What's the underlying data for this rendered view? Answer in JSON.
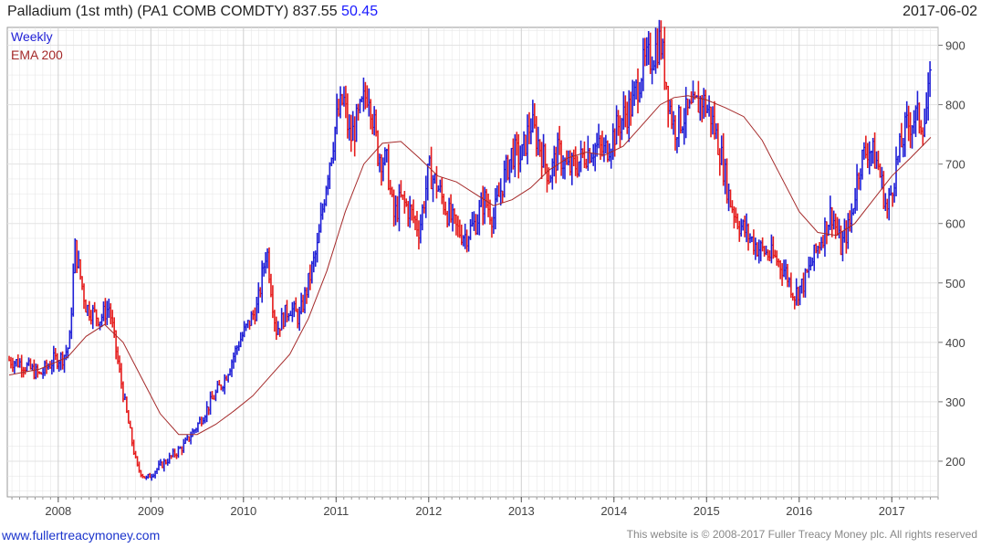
{
  "header": {
    "symbol": "Palladium (1st mth)  (PA1 COMB COMDTY)",
    "price": "837.55",
    "change": "50.45",
    "date": "2017-06-02"
  },
  "footer": {
    "link": "www.fullertreacymoney.com",
    "copyright": "This website is © 2008-2017 Fuller Treacy Money plc. All rights reserved"
  },
  "colors": {
    "up": "#1f1fd6",
    "down": "#e51c1c",
    "ema": "#a52a2a",
    "grid": "#e3e3e3",
    "weekly_label": "#1f1fd6",
    "ema_label": "#a52a2a"
  },
  "chart_data": {
    "type": "line",
    "legend": [
      "Weekly",
      "EMA 200"
    ],
    "legend_position": "top-left",
    "x_ticks": [
      "2008",
      "2009",
      "2010",
      "2011",
      "2012",
      "2013",
      "2014",
      "2015",
      "2016",
      "2017"
    ],
    "y_ticks": [
      200,
      300,
      400,
      500,
      600,
      700,
      800,
      900
    ],
    "ylim": [
      140,
      930
    ],
    "grid": true,
    "series": [
      {
        "name": "Weekly",
        "x": [
          2007.47,
          2007.6,
          2007.8,
          2007.95,
          2008.05,
          2008.12,
          2008.18,
          2008.3,
          2008.45,
          2008.55,
          2008.65,
          2008.75,
          2008.85,
          2008.95,
          2009.05,
          2009.2,
          2009.35,
          2009.5,
          2009.65,
          2009.8,
          2009.95,
          2010.05,
          2010.15,
          2010.25,
          2010.35,
          2010.5,
          2010.6,
          2010.7,
          2010.8,
          2010.9,
          2011.0,
          2011.08,
          2011.15,
          2011.25,
          2011.35,
          2011.45,
          2011.55,
          2011.62,
          2011.7,
          2011.8,
          2011.9,
          2012.0,
          2012.1,
          2012.2,
          2012.3,
          2012.4,
          2012.5,
          2012.6,
          2012.7,
          2012.8,
          2012.9,
          2013.0,
          2013.1,
          2013.2,
          2013.3,
          2013.4,
          2013.5,
          2013.6,
          2013.7,
          2013.8,
          2013.9,
          2014.0,
          2014.1,
          2014.2,
          2014.3,
          2014.4,
          2014.5,
          2014.6,
          2014.65,
          2014.75,
          2014.85,
          2014.95,
          2015.05,
          2015.15,
          2015.25,
          2015.35,
          2015.45,
          2015.55,
          2015.65,
          2015.75,
          2015.85,
          2015.95,
          2016.05,
          2016.15,
          2016.25,
          2016.35,
          2016.45,
          2016.55,
          2016.65,
          2016.75,
          2016.85,
          2016.95,
          2017.05,
          2017.15,
          2017.25,
          2017.35,
          2017.42
        ],
        "values": [
          370,
          365,
          345,
          370,
          375,
          395,
          560,
          460,
          440,
          460,
          360,
          270,
          190,
          170,
          185,
          205,
          225,
          260,
          300,
          340,
          400,
          430,
          460,
          560,
          420,
          460,
          440,
          500,
          560,
          680,
          770,
          810,
          740,
          780,
          830,
          720,
          700,
          610,
          640,
          620,
          590,
          690,
          660,
          620,
          590,
          580,
          600,
          640,
          610,
          670,
          720,
          710,
          770,
          730,
          680,
          720,
          690,
          700,
          720,
          730,
          720,
          750,
          780,
          800,
          860,
          880,
          910,
          800,
          760,
          780,
          790,
          810,
          780,
          720,
          640,
          600,
          580,
          560,
          550,
          540,
          520,
          480,
          500,
          540,
          580,
          620,
          560,
          600,
          700,
          730,
          700,
          620,
          700,
          760,
          780,
          770,
          837.55
        ]
      },
      {
        "name": "EMA 200",
        "x": [
          2007.47,
          2007.8,
          2008.1,
          2008.3,
          2008.5,
          2008.7,
          2008.9,
          2009.1,
          2009.3,
          2009.5,
          2009.7,
          2009.9,
          2010.1,
          2010.3,
          2010.5,
          2010.7,
          2010.9,
          2011.1,
          2011.3,
          2011.5,
          2011.7,
          2011.9,
          2012.1,
          2012.3,
          2012.5,
          2012.7,
          2012.9,
          2013.1,
          2013.3,
          2013.5,
          2013.7,
          2013.9,
          2014.1,
          2014.3,
          2014.5,
          2014.65,
          2014.8,
          2015.0,
          2015.2,
          2015.4,
          2015.6,
          2015.8,
          2016.0,
          2016.2,
          2016.4,
          2016.6,
          2016.8,
          2017.0,
          2017.2,
          2017.42
        ],
        "values": [
          345,
          355,
          375,
          410,
          430,
          400,
          340,
          280,
          245,
          245,
          262,
          285,
          310,
          345,
          380,
          440,
          520,
          620,
          700,
          735,
          738,
          710,
          680,
          670,
          650,
          630,
          640,
          660,
          690,
          710,
          720,
          715,
          730,
          765,
          800,
          812,
          815,
          808,
          795,
          780,
          740,
          680,
          620,
          585,
          580,
          600,
          640,
          680,
          710,
          745
        ]
      }
    ]
  }
}
